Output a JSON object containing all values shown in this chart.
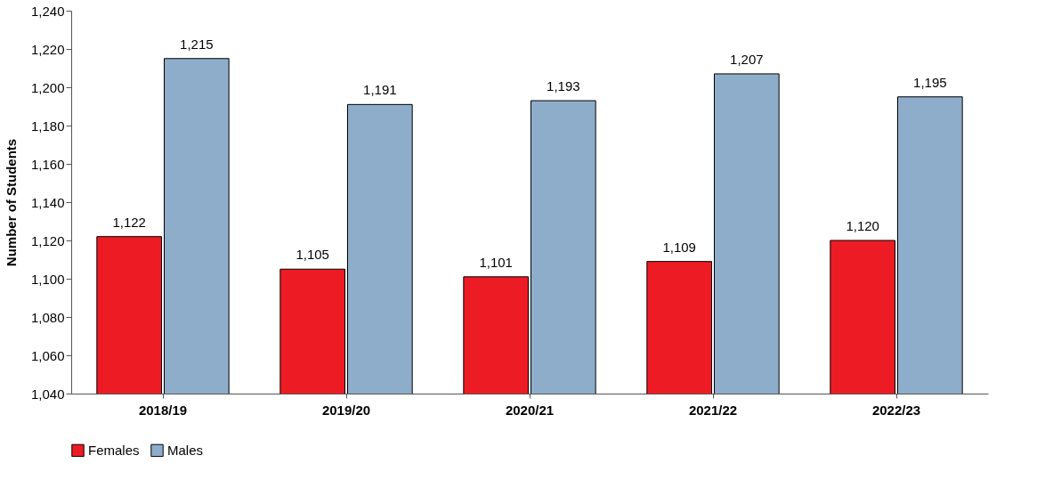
{
  "chart_data": {
    "type": "bar",
    "ylabel": "Number of Students",
    "categories": [
      "2018/19",
      "2019/20",
      "2020/21",
      "2021/22",
      "2022/23"
    ],
    "series": [
      {
        "name": "Females",
        "color": "#ed1c24",
        "values": [
          1122,
          1105,
          1101,
          1109,
          1120
        ],
        "value_labels": [
          "1,122",
          "1,105",
          "1,101",
          "1,109",
          "1,120"
        ]
      },
      {
        "name": "Males",
        "color": "#8eadca",
        "values": [
          1215,
          1191,
          1193,
          1207,
          1195
        ],
        "value_labels": [
          "1,215",
          "1,191",
          "1,193",
          "1,207",
          "1,195"
        ]
      }
    ],
    "ylim": [
      1040,
      1240
    ],
    "yticks": [
      {
        "value": 1040,
        "label": "1,040"
      },
      {
        "value": 1060,
        "label": "1,060"
      },
      {
        "value": 1080,
        "label": "1,080"
      },
      {
        "value": 1100,
        "label": "1,100"
      },
      {
        "value": 1120,
        "label": "1,120"
      },
      {
        "value": 1140,
        "label": "1,140"
      },
      {
        "value": 1160,
        "label": "1,160"
      },
      {
        "value": 1180,
        "label": "1,180"
      },
      {
        "value": 1200,
        "label": "1,200"
      },
      {
        "value": 1220,
        "label": "1,220"
      },
      {
        "value": 1240,
        "label": "1,240"
      }
    ],
    "grid": false,
    "legend": "bottom"
  }
}
